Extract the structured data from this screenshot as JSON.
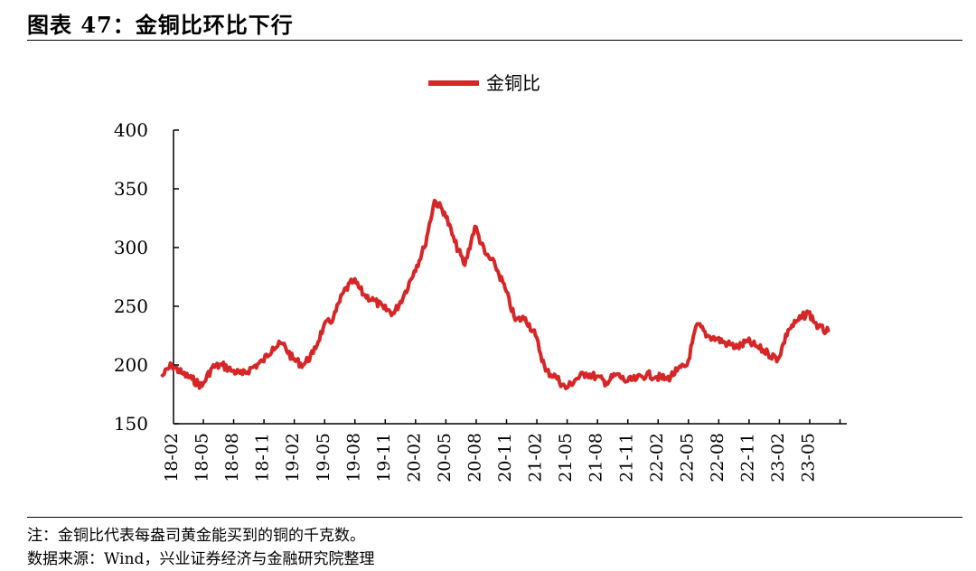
{
  "figure": {
    "title": "图表 47：金铜比环比下行",
    "note": "注：金铜比代表每盎司黄金能买到的铜的千克数。",
    "source": "数据来源：Wind，兴业证券经济与金融研究院整理"
  },
  "colors": {
    "series": "#d62728",
    "axis": "#000000"
  },
  "chart_data": {
    "type": "line",
    "title": "",
    "xlabel": "",
    "ylabel": "",
    "ylim": [
      150,
      400
    ],
    "yticks": [
      "150",
      "200",
      "250",
      "300",
      "350",
      "400"
    ],
    "xticks": [
      "18-02",
      "18-05",
      "18-08",
      "18-11",
      "19-02",
      "19-05",
      "19-08",
      "19-11",
      "20-02",
      "20-05",
      "20-08",
      "20-11",
      "21-02",
      "21-05",
      "21-08",
      "21-11",
      "22-02",
      "22-05",
      "22-08",
      "22-11",
      "23-02",
      "23-05"
    ],
    "grid": false,
    "legend": "top-center",
    "series": [
      {
        "name": "金铜比",
        "x": [
          "18-01",
          "18-02",
          "18-03",
          "18-04",
          "18-05",
          "18-06",
          "18-07",
          "18-08",
          "18-09",
          "18-10",
          "18-11",
          "18-12",
          "19-01",
          "19-02",
          "19-03",
          "19-04",
          "19-05",
          "19-06",
          "19-07",
          "19-08",
          "19-09",
          "19-10",
          "19-11",
          "19-12",
          "20-01",
          "20-02",
          "20-03",
          "20-04",
          "20-05",
          "20-06",
          "20-07",
          "20-08",
          "20-09",
          "20-10",
          "20-11",
          "20-12",
          "21-01",
          "21-02",
          "21-03",
          "21-04",
          "21-05",
          "21-06",
          "21-07",
          "21-08",
          "21-09",
          "21-10",
          "21-11",
          "21-12",
          "22-01",
          "22-02",
          "22-03",
          "22-04",
          "22-05",
          "22-06",
          "22-07",
          "22-08",
          "22-09",
          "22-10",
          "22-11",
          "22-12",
          "23-01",
          "23-02",
          "23-03",
          "23-04",
          "23-05",
          "23-06",
          "23-07"
        ],
        "values": [
          190,
          200,
          193,
          188,
          182,
          198,
          200,
          195,
          192,
          198,
          203,
          215,
          218,
          205,
          200,
          210,
          232,
          240,
          262,
          272,
          260,
          255,
          248,
          244,
          260,
          280,
          300,
          340,
          330,
          305,
          285,
          318,
          295,
          285,
          265,
          238,
          240,
          225,
          195,
          190,
          180,
          188,
          193,
          190,
          185,
          192,
          186,
          188,
          192,
          190,
          188,
          195,
          200,
          235,
          225,
          222,
          218,
          215,
          220,
          215,
          210,
          205,
          230,
          238,
          245,
          232,
          228
        ]
      }
    ]
  }
}
